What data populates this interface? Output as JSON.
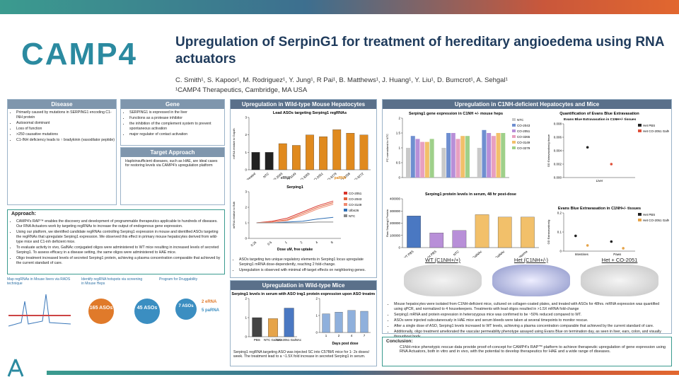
{
  "header": {
    "logo": "CAMP4",
    "title": "Upregulation of SerpinG1 for treatment of hereditary angioedema using RNA actuators",
    "authors": "C. Smith¹, S. Kapoor¹, M. Rodriguez¹, Y. Jung¹, R Pai¹, B. Matthews¹, J. Huang¹, Y. Liu¹, D. Bumcrot¹, A. Sehgal¹",
    "affiliation": "¹CAMP4 Therapeutics, Cambridge, MA USA"
  },
  "disease": {
    "title": "Disease",
    "bullets": [
      "Primarily caused by mutations in SERPING1 encoding C1-INH protein",
      "Autosomal dominant",
      "Loss of function",
      ">250 causative mutations",
      "C1-INH deficiency leads to ↑ bradykinin (vasodilator peptide)"
    ]
  },
  "gene": {
    "title": "Gene",
    "bullets": [
      "SERPING1 is expressed in the liver",
      "Functions as a protease inhibitor",
      "the inhibition of the complement system to prevent spontaneous activation",
      "major regulator of contact activation"
    ]
  },
  "target": {
    "title": "Target Approach",
    "text": "Haploinsufficient diseases, such as HAE, are ideal cases for restoring levels via CAMP4's upregulation platform"
  },
  "approach": {
    "title": "Approach:",
    "bullets": [
      "CAMP4's RAP™ enables the discovery and development of programmable therapeutics applicable to hundreds of diseases. Our RNA Actuators work by targeting regRNAs to increase the output of endogenous gene expression.",
      "Using our platform, we identified candidate regRNAs controlling Serping1 expression in mouse and identified ASOs targeting the regRNAs that upregulate Serping1 expression. We observed this effect in primary mouse hepatocytes derived from wild-type mice and C1-inh deficient mice.",
      "To evaluate activity in vivo, GalNAc conjugated oligos were administered to WT mice resulting in increased levels of secreted Serping1. To assess efficacy in a disease setting, the same oligos were administered to HAE mice.",
      "Oligo treatment increased levels of secreted Serping1 protein, achieving a plasma concentration comparable that achieved by the current standard of care."
    ]
  },
  "pipeline": {
    "steps": [
      "Map regRNAs in Mouse livers via RADS technique",
      "Identify regRNA hotspots via screening in Mouse Heps",
      "Program for Druggability"
    ],
    "counts": [
      "165 ASOs",
      "45 ASOs",
      "7 ASOs"
    ],
    "outputs": [
      "2 eRNA",
      "5 paRNA"
    ]
  },
  "hepatocytes": {
    "title": "Upregulation in Wild-type Mouse Hepatocytes",
    "bullets": [
      "ASOs targeting two unique regulatory elements in Serping1 locus upregulate Serping1 mRNA dose-dependently, reaching 2 fold-change.",
      "Upregulation is observed with minimal off-target effects on neighboring genes."
    ],
    "chart_data": [
      {
        "type": "bar",
        "title": "Lead ASOs targeting Serping1 regRNAs",
        "ylabel": "mRNA relative to Gapdh",
        "categories": [
          "Untreated",
          "NTC",
          "CO-2043",
          "CO-3149",
          "CO-3265",
          "CO-2051",
          "CO-3279",
          "CO-3258",
          "CO-3272"
        ],
        "values": [
          1,
          1,
          1.5,
          1.4,
          2,
          1.9,
          2.3,
          2.1,
          2
        ],
        "colors": [
          "#222222",
          "#222222",
          "#e08a1e",
          "#e08a1e",
          "#e08a1e",
          "#e08a1e",
          "#e08a1e",
          "#e08a1e",
          "#e08a1e"
        ],
        "ylim": [
          0,
          3
        ],
        "yticks": [
          0,
          1,
          2,
          3
        ],
        "annotations": [
          "eRNA",
          "paRNA"
        ]
      },
      {
        "type": "line",
        "title": "Serping1",
        "xlabel": "Dose uM, free uptake",
        "ylabel": "mRNA relative to Bdh",
        "categories": [
          "0.25",
          "0.5",
          "1",
          "2",
          "4",
          "8"
        ],
        "ylim": [
          0,
          3
        ],
        "yticks": [
          0,
          1,
          2,
          3
        ],
        "series": [
          {
            "name": "CO-2051",
            "color": "#d9342b",
            "values": [
              1,
              1.1,
              1.3,
              1.7,
              2.1,
              2.4
            ]
          },
          {
            "name": "CO-2043",
            "color": "#e0603a",
            "values": [
              1,
              1.05,
              1.2,
              1.6,
              2,
              2.3
            ]
          },
          {
            "name": "CO-3149",
            "color": "#f08a70",
            "values": [
              1,
              1.05,
              1.15,
              1.5,
              1.9,
              2.2
            ]
          },
          {
            "name": "Ulbn26",
            "color": "#2f6fb5",
            "values": [
              1,
              1,
              1.05,
              1.1,
              1.25,
              1.35
            ]
          },
          {
            "name": "NTC",
            "color": "#888888",
            "values": [
              1,
              1,
              1,
              1,
              1.05,
              1.05
            ]
          }
        ]
      }
    ]
  },
  "mice": {
    "title": "Upregulation in Wild-type Mice",
    "caption": "Serping1 regRNA targeting ASO  was injected SC into C57Bl/6 mice for 1- 2x doses/ week. The treatment lead to a ~1.5X fold increase in secreted Serping1 in serum.",
    "chart_data": [
      {
        "type": "bar",
        "title": "Serping1 levels in serum with ASO treatment",
        "categories": [
          "PBS",
          "NTC GalNAc",
          "CO-2051 GalNAc"
        ],
        "values": [
          1,
          0.95,
          1.5
        ],
        "colors": [
          "#444444",
          "#e6a44a",
          "#4a78c2"
        ],
        "ylim": [
          0,
          2
        ],
        "yticks": [
          0,
          1,
          2
        ]
      },
      {
        "type": "bar",
        "title": "Serping1 protein expression upon ASO treatment in WT mice",
        "xlabel": "Days post dose",
        "categories": [
          "1",
          "2",
          "4",
          "7"
        ],
        "values": [
          1.1,
          1.2,
          1.3,
          1.25
        ],
        "color": "#8fb0dc",
        "ylim": [
          0,
          2
        ],
        "yticks": [
          0,
          1,
          2
        ]
      }
    ]
  },
  "c1nh": {
    "title": "Upregulation in C1NH-deficient Hepatocytes and Mice",
    "photo_labels": [
      "WT (C1NH+/+)",
      "Het (C1NH+/-)",
      "Het + CO-2051"
    ],
    "bullets": [
      "Mouse hepatocytes were isolated from C1NH-deficient mice, cultured on collagen-coated plates, and treated with ASOs for 48hrs. mRNA expression was quantified using qPCR, and normalized to 4 housekeepers. Treatments with lead oligos resulted in >1.5X mRNA fold-change",
      "Serping1 mRNA and protein expression in heterozygous mice was confirmed to be ~50% reduced compared to WT.",
      "ASOs were injected subcutaneously in HAE mice and serum bleeds were taken at several timepoints to monitor rescue.",
      "After a single dose of ASO, Serping1 levels increased to WT levels, achieving a plasma concentration comparable that achieved by the current standard of care.",
      "Additionally, oligo treatment ameliorated the vascular permeability phenotype assayed using Evans Blue on termination day, as seen in liver, ears, colon, and visually throughout body."
    ],
    "chart_data": [
      {
        "type": "bar",
        "title": "Serping1 gene expression in C1NH +/- mouse heps",
        "ylabel": "FC normalized to NTC",
        "categories": [
          null,
          null,
          null
        ],
        "ylim": [
          0,
          2
        ],
        "yticks": [
          0,
          0.5,
          1,
          1.5,
          2
        ],
        "series": [
          {
            "name": "NTC",
            "color": "#c9c9c9",
            "values": [
              1,
              1,
              1
            ]
          },
          {
            "name": "CO-2043",
            "color": "#6f8fd0",
            "values": [
              1.4,
              1.5,
              1.6
            ]
          },
          {
            "name": "CO-2051",
            "color": "#b88fd8",
            "values": [
              1.3,
              1.5,
              1.5
            ]
          },
          {
            "name": "CO-3265",
            "color": "#e8a0c0",
            "values": [
              1.2,
              1.3,
              1.4
            ]
          },
          {
            "name": "CO-3149",
            "color": "#f2c06a",
            "values": [
              1.2,
              1.4,
              1.5
            ]
          },
          {
            "name": "CO-3279",
            "color": "#9fd08a",
            "values": [
              1.3,
              1.4,
              1.5
            ]
          }
        ]
      },
      {
        "type": "bar",
        "title": "Serping1 protein levels in serum, 48 hr post-dose",
        "ylabel": "Raw Serping1 Protein",
        "categories": [
          "WT PBS",
          "Het PBS",
          "NTC",
          "CO-2051 GalNAc",
          "CO-2043 GalNAc",
          "C1INH plasma"
        ],
        "values": [
          260000,
          120000,
          140000,
          270000,
          250000,
          250000
        ],
        "colors": [
          "#4a78c2",
          "#b88fd8",
          "#b88fd8",
          "#f2c06a",
          "#f2c06a",
          "#f2c06a"
        ],
        "ylim": [
          0,
          400000
        ],
        "yticks": [
          0,
          100000,
          200000,
          300000,
          400000
        ]
      },
      {
        "type": "dot",
        "title": "Quantification of Evans Blue Extravasation",
        "subtitle": "Evans Blue Extravasation in C1NH+/- tissues",
        "ylabel": "OD Extravasation/g tissue",
        "categories": [
          "Liver"
        ],
        "ylim": [
          0,
          0.008
        ],
        "yticks": [
          {
            "value": 0,
            "label": "0.000"
          },
          {
            "value": 0.002,
            "label": "0.002"
          },
          {
            "value": 0.004,
            "label": "0.004"
          },
          {
            "value": 0.006,
            "label": "0.006"
          },
          {
            "value": 0.008,
            "label": "0.008"
          }
        ],
        "series": [
          {
            "name": "Het PBS",
            "color": "#222222",
            "values": [
              0.0045
            ]
          },
          {
            "name": "Het CO-2051 GalNAc",
            "color": "#e0503a",
            "values": [
              0.002
            ]
          }
        ]
      },
      {
        "type": "dot",
        "title": "Evans Blue Extravasation in C1NH+/- tissues",
        "ylabel": "OD Extravasation/g",
        "categories": [
          "Intestines",
          "Paws"
        ],
        "ylim": [
          0,
          0.2
        ],
        "yticks": [
          0,
          0.1,
          0.2
        ],
        "series": [
          {
            "name": "Het PBS",
            "color": "#222222",
            "values": [
              0.08,
              0.05
            ]
          },
          {
            "name": "Het CO-2051 GalNAc",
            "color": "#e6a44a",
            "values": [
              0.03,
              0.015
            ]
          }
        ]
      }
    ]
  },
  "conclusion": {
    "title": "Conclusion:",
    "text": "C1NH-mice phenotypic rescue data provide proof-of-concept for CAMP4's RAP™ platform to achieve therapeutic upregulation of gene expression using RNA Actuators, both in vitro and in vivo, with the potential to develop therapeutics for HAE and a wide range of diseases."
  }
}
